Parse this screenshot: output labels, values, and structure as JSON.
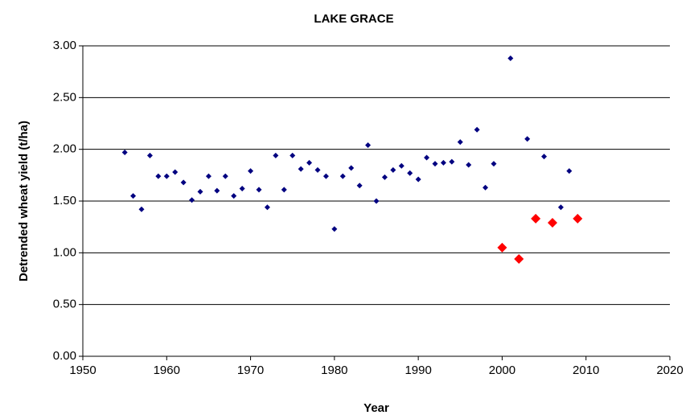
{
  "chart_data": {
    "type": "scatter",
    "title": "LAKE GRACE",
    "x_label": "Year",
    "y_label": "Detrended wheat yield (t/ha)",
    "series": [
      {
        "color": "#000080",
        "marker_size": 7,
        "x": [
          1955,
          1956,
          1957,
          1958,
          1959,
          1960,
          1961,
          1962,
          1963,
          1964,
          1965,
          1966,
          1967,
          1968,
          1969,
          1970,
          1971,
          1972,
          1973,
          1974,
          1975,
          1976,
          1977,
          1978,
          1979,
          1980,
          1981,
          1982,
          1983,
          1984,
          1985,
          1986,
          1987,
          1988,
          1989,
          1990,
          1991,
          1992,
          1993,
          1994,
          1995,
          1996,
          1997,
          1998,
          1999,
          2001,
          2003,
          2005,
          2007,
          2008
        ],
        "values": [
          1.97,
          1.55,
          1.42,
          1.94,
          1.74,
          1.74,
          1.78,
          1.68,
          1.51,
          1.59,
          1.74,
          1.6,
          1.74,
          1.55,
          1.62,
          1.79,
          1.61,
          1.44,
          1.94,
          1.61,
          1.94,
          1.81,
          1.87,
          1.8,
          1.74,
          1.23,
          1.74,
          1.82,
          1.65,
          2.04,
          1.5,
          1.73,
          1.8,
          1.84,
          1.77,
          1.71,
          1.92,
          1.86,
          1.87,
          1.88,
          2.07,
          1.85,
          2.19,
          1.63,
          1.86,
          2.88,
          2.1,
          1.93,
          1.44,
          1.79
        ]
      },
      {
        "color": "#ff0000",
        "marker_size": 12,
        "x": [
          2000,
          2002,
          2004,
          2006,
          2009
        ],
        "values": [
          1.05,
          0.94,
          1.33,
          1.29,
          1.33
        ]
      }
    ],
    "xlim": [
      1950,
      2020
    ],
    "xticks": [
      1950,
      1960,
      1970,
      1980,
      1990,
      2000,
      2010,
      2020
    ],
    "ylim": [
      0,
      3
    ],
    "yticks": [
      {
        "value": 0,
        "label": "0.00"
      },
      {
        "value": 0.5,
        "label": "0.50"
      },
      {
        "value": 1,
        "label": "1.00"
      },
      {
        "value": 1.5,
        "label": "1.50"
      },
      {
        "value": 2,
        "label": "2.00"
      },
      {
        "value": 2.5,
        "label": "2.50"
      },
      {
        "value": 3,
        "label": "3.00"
      }
    ],
    "grid": true
  }
}
